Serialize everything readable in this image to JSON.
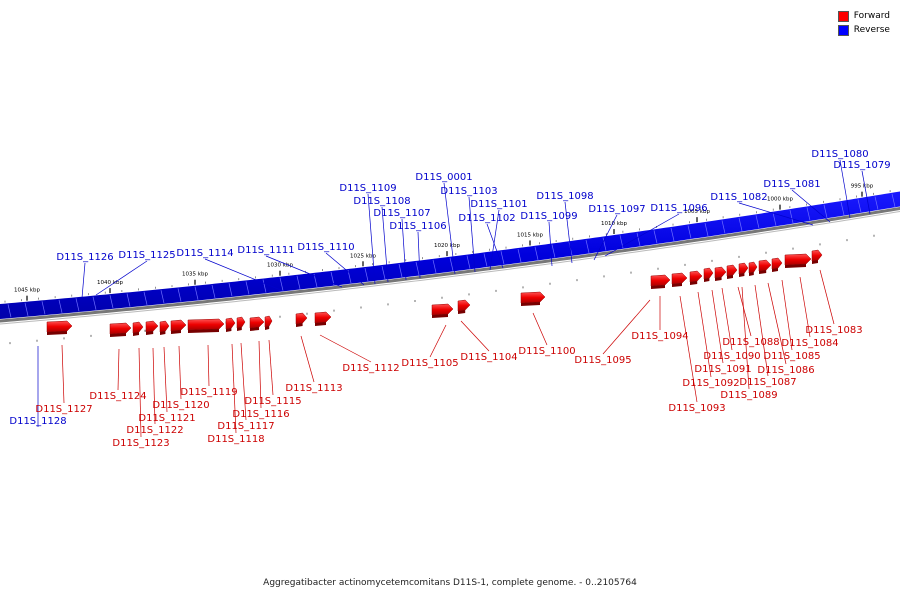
{
  "caption": "Aggregatibacter actinomycetemcomitans D11S-1, complete genome. - 0..2105764",
  "legend": [
    {
      "label": "Forward",
      "color": "#ff0000"
    },
    {
      "label": "Reverse",
      "color": "#0000ff"
    }
  ],
  "ticks": [
    "1045 kbp",
    "1040 kbp",
    "1035 kbp",
    "1030 kbp",
    "1025 kbp",
    "1020 kbp",
    "1015 kbp",
    "1010 kbp",
    "1005 kbp",
    "1000 kbp",
    "995 kbp"
  ],
  "reverse_labels": [
    "D11S_1080",
    "D11S_1079",
    "D11S_1081",
    "D11S_1082",
    "D11S_1096",
    "D11S_1097",
    "D11S_1098",
    "D11S_1099",
    "D11S_0001",
    "D11S_1103",
    "D11S_1101",
    "D11S_1102",
    "D11S_1109",
    "D11S_1108",
    "D11S_1107",
    "D11S_1106",
    "D11S_1110",
    "D11S_1111",
    "D11S_1114",
    "D11S_1125",
    "D11S_1126",
    "D11S_1128"
  ],
  "forward_labels": [
    "D11S_1083",
    "D11S_1084",
    "D11S_1085",
    "D11S_1086",
    "D11S_1087",
    "D11S_1088",
    "D11S_1089",
    "D11S_1090",
    "D11S_1091",
    "D11S_1092",
    "D11S_1093",
    "D11S_1094",
    "D11S_1095",
    "D11S_1100",
    "D11S_1104",
    "D11S_1105",
    "D11S_1112",
    "D11S_1113",
    "D11S_1115",
    "D11S_1116",
    "D11S_1117",
    "D11S_1118",
    "D11S_1119",
    "D11S_1120",
    "D11S_1121",
    "D11S_1122",
    "D11S_1123",
    "D11S_1124",
    "D11S_1127"
  ]
}
